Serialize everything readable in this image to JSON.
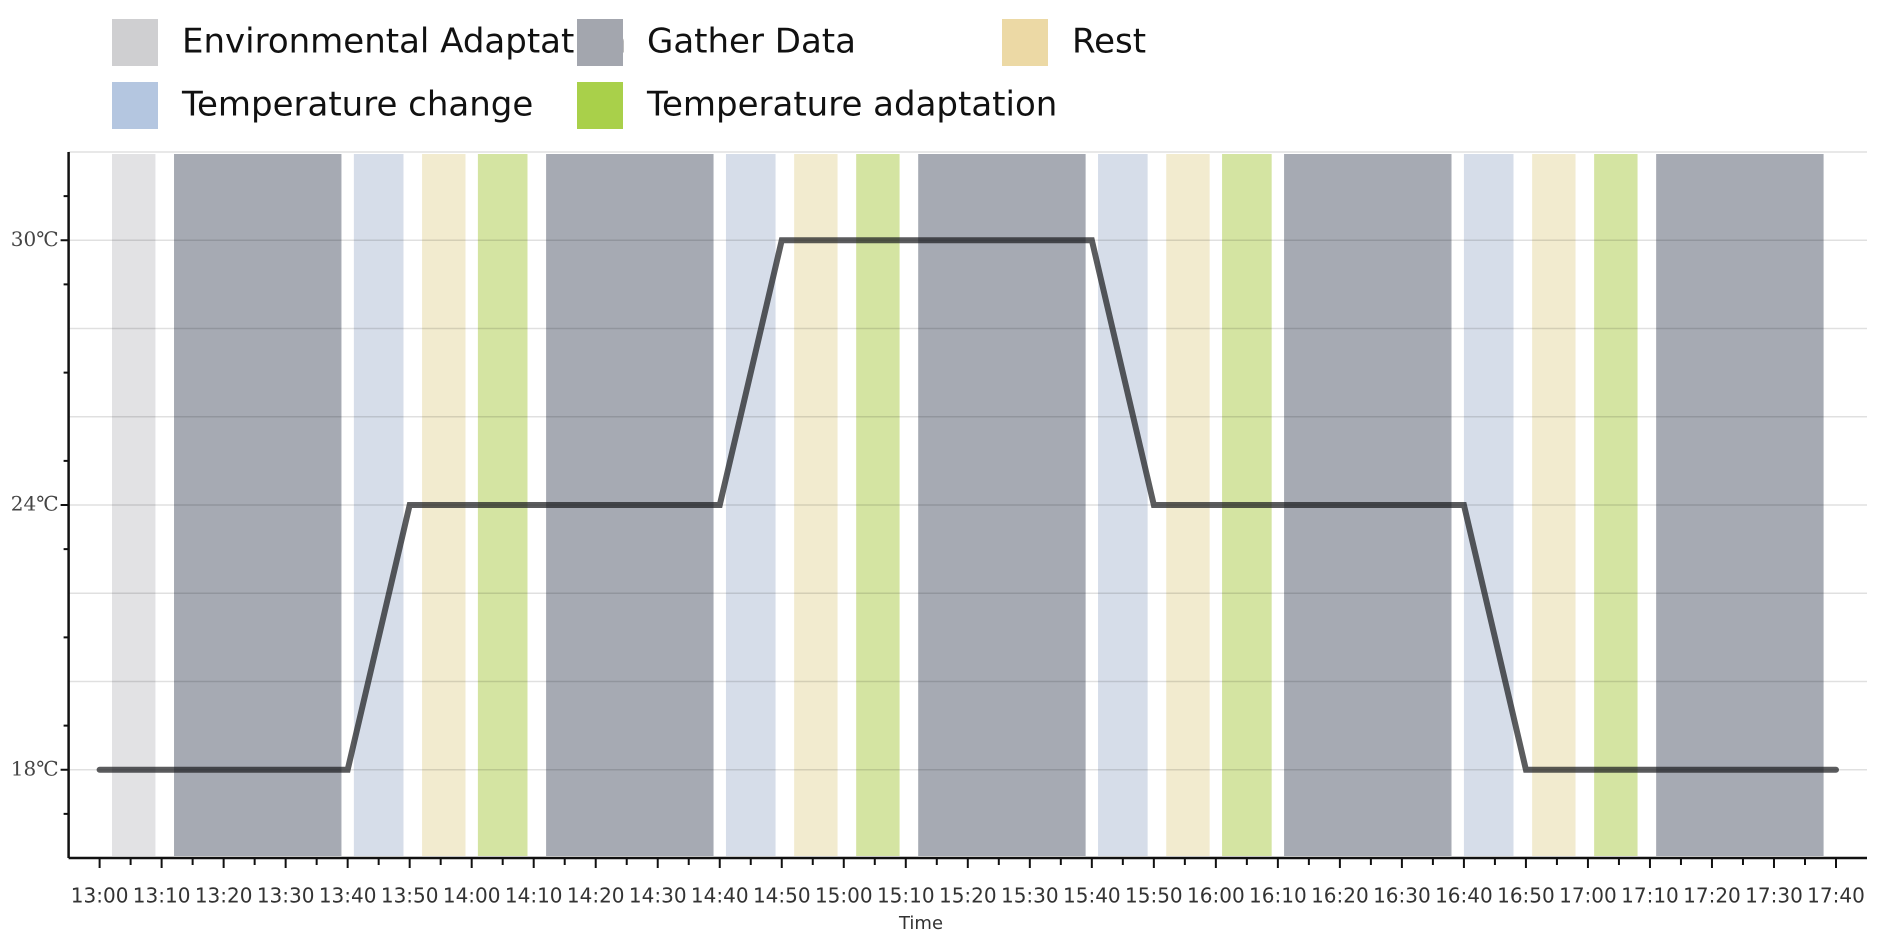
{
  "chart_data": {
    "type": "line",
    "x_label": "Time",
    "x": [
      "13:00",
      "13:40",
      "13:50",
      "14:40",
      "14:50",
      "15:40",
      "15:50",
      "16:40",
      "16:50",
      "17:40"
    ],
    "values": [
      18,
      18,
      24,
      24,
      30,
      30,
      24,
      24,
      18,
      18
    ],
    "line_color": "#1c1d20",
    "xlim": [
      "12:55",
      "17:45"
    ],
    "xticks": [
      "13:00",
      "13:10",
      "13:20",
      "13:30",
      "13:40",
      "13:50",
      "14:00",
      "14:10",
      "14:20",
      "14:30",
      "14:40",
      "14:50",
      "15:00",
      "15:10",
      "15:20",
      "15:30",
      "15:40",
      "15:50",
      "16:00",
      "16:10",
      "16:20",
      "16:30",
      "16:40",
      "16:50",
      "17:00",
      "17:10",
      "17:20",
      "17:30",
      "17:40"
    ],
    "minor_xticks": [
      "13:05",
      "13:15",
      "13:25",
      "13:35",
      "13:45",
      "13:55",
      "14:05",
      "14:15",
      "14:25",
      "14:35",
      "14:45",
      "14:55",
      "15:05",
      "15:15",
      "15:25",
      "15:35",
      "15:45",
      "15:55",
      "16:05",
      "16:15",
      "16:25",
      "16:35",
      "16:45",
      "16:55",
      "17:05",
      "17:15",
      "17:25",
      "17:35"
    ],
    "ylim": [
      16,
      32
    ],
    "yticks": [
      {
        "value": 18,
        "label": "18℃"
      },
      {
        "value": 24,
        "label": "24℃"
      },
      {
        "value": 30,
        "label": "30℃"
      }
    ],
    "grid_yticks": [
      20,
      22,
      26,
      28,
      32
    ],
    "minor_yticks": [
      17,
      19,
      21,
      23,
      25,
      27,
      29,
      31
    ],
    "phases": [
      {
        "name": "Environmental Adaptation",
        "color": "#cfcfd1",
        "band_color": "#e2e2e4"
      },
      {
        "name": "Gather Data",
        "color": "#a3a6ae",
        "band_color": "#a6aab3"
      },
      {
        "name": "Rest",
        "color": "#ecd9a5",
        "band_color": "#f2ebcf"
      },
      {
        "name": "Temperature change",
        "color": "#b4c6e0",
        "band_color": "#d6dde9"
      },
      {
        "name": "Temperature adaptation",
        "color": "#a9d04a",
        "band_color": "#d4e4a2"
      }
    ],
    "bands": [
      {
        "phase": 0,
        "start": "13:02",
        "end": "13:09"
      },
      {
        "phase": 1,
        "start": "13:12",
        "end": "13:39"
      },
      {
        "phase": 3,
        "start": "13:41",
        "end": "13:49"
      },
      {
        "phase": 2,
        "start": "13:52",
        "end": "13:59"
      },
      {
        "phase": 4,
        "start": "14:01",
        "end": "14:09"
      },
      {
        "phase": 1,
        "start": "14:12",
        "end": "14:39"
      },
      {
        "phase": 3,
        "start": "14:41",
        "end": "14:49"
      },
      {
        "phase": 2,
        "start": "14:52",
        "end": "14:59"
      },
      {
        "phase": 4,
        "start": "15:02",
        "end": "15:09"
      },
      {
        "phase": 1,
        "start": "15:12",
        "end": "15:39"
      },
      {
        "phase": 3,
        "start": "15:41",
        "end": "15:49"
      },
      {
        "phase": 2,
        "start": "15:52",
        "end": "15:59"
      },
      {
        "phase": 4,
        "start": "16:01",
        "end": "16:09"
      },
      {
        "phase": 1,
        "start": "16:11",
        "end": "16:38"
      },
      {
        "phase": 3,
        "start": "16:40",
        "end": "16:48"
      },
      {
        "phase": 2,
        "start": "16:51",
        "end": "16:58"
      },
      {
        "phase": 4,
        "start": "17:01",
        "end": "17:08"
      },
      {
        "phase": 1,
        "start": "17:11",
        "end": "17:38"
      }
    ]
  }
}
